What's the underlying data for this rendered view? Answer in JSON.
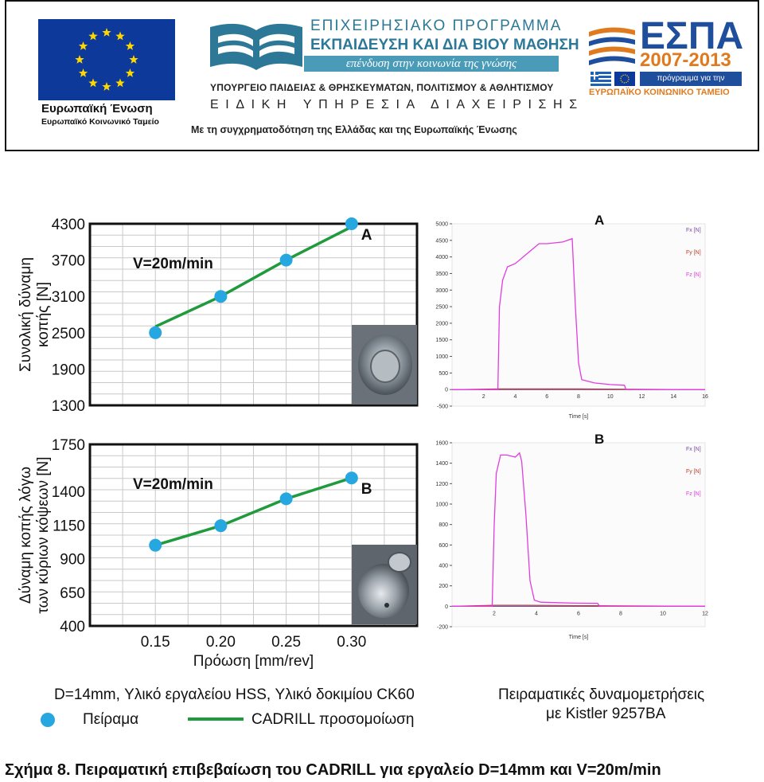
{
  "banner": {
    "eu_text1": "Ευρωπαϊκή Ένωση",
    "eu_text2": "Ευρωπαϊκό Κοινωνικό Ταμείο",
    "program_line1": "ΕΠΙΧΕΙΡΗΣΙΑΚΟ ΠΡΟΓΡΑΜΜΑ",
    "program_line2": "ΕΚΠΑΙΔΕΥΣΗ ΚΑΙ ΔΙΑ ΒΙΟΥ ΜΑΘΗΣΗ",
    "program_line3": "επένδυση στην κοινωνία της γνώσης",
    "program_line4": "ΥΠΟΥΡΓΕΙΟ ΠΑΙΔΕΙΑΣ & ΘΡΗΣΚΕΥΜΑΤΩΝ, ΠΟΛΙΤΙΣΜΟΥ & ΑΘΛΗΤΙΣΜΟΥ",
    "program_line5": "ΕΙΔΙΚΗ ΥΠΗΡΕΣΙΑ ΔΙΑΧΕΙΡΙΣΗΣ",
    "cofunding": "Με τη συγχρηματοδότηση της Ελλάδας και της Ευρωπαϊκής Ένωσης",
    "espa_title": "ΕΣΠΑ",
    "espa_years": "2007-2013",
    "espa_tagline": "πρόγραμμα για την ανάπτυξη",
    "espa_fund": "ΕΥΡΩΠΑΪΚΟ ΚΟΙΝΩΝΙΚΟ ΤΑΜΕΙΟ",
    "eu_color": "#0d3a9a",
    "program_color": "#2d7896",
    "espa_blue": "#1f4e9c",
    "espa_orange": "#e07a1e"
  },
  "chart_data": [
    {
      "type": "line",
      "id": "A",
      "label": "A",
      "annotation": "V=20m/min",
      "ylabel": "Συνολική δύναμη κοπής [N]",
      "ylabel_line1": "Συνολική δύναμη",
      "ylabel_line2": "κοπής [N]",
      "x": [
        0.15,
        0.2,
        0.25,
        0.3
      ],
      "xlim": [
        0.1,
        0.35
      ],
      "ylim": [
        1300,
        4300
      ],
      "yticks": [
        1300,
        1900,
        2500,
        3100,
        3700,
        4300
      ],
      "series": [
        {
          "name": "Πείραμα",
          "style": "markers",
          "values": [
            2500,
            3100,
            3700,
            4300
          ]
        },
        {
          "name": "CADRILL προσομοίωση",
          "style": "line",
          "values": [
            2600,
            3100,
            3700,
            4250
          ]
        }
      ],
      "grid": true
    },
    {
      "type": "line",
      "id": "B",
      "label": "B",
      "annotation": "V=20m/min",
      "ylabel": "Δύναμη κοπής λόγω των κύριων κόψεων [N]",
      "ylabel_line1": "Δύναμη κοπής λόγω",
      "ylabel_line2": "των κύριων κόψεων [N]",
      "xlabel": "Πρόωση [mm/rev]",
      "x": [
        0.15,
        0.2,
        0.25,
        0.3
      ],
      "xticks": [
        "0.15",
        "0.20",
        "0.25",
        "0.30"
      ],
      "xlim": [
        0.1,
        0.35
      ],
      "ylim": [
        400,
        1750
      ],
      "yticks": [
        400,
        650,
        900,
        1150,
        1400,
        1750
      ],
      "series": [
        {
          "name": "Πείραμα",
          "style": "markers",
          "values": [
            1000,
            1145,
            1345,
            1500
          ]
        },
        {
          "name": "CADRILL προσομοίωση",
          "style": "line",
          "values": [
            1000,
            1145,
            1345,
            1500
          ]
        }
      ],
      "grid": true
    },
    {
      "type": "line",
      "id": "A_meas",
      "label": "A",
      "xlabel": "Time [s]",
      "xlim": [
        0,
        16
      ],
      "xticks": [
        2,
        4,
        6,
        8,
        10,
        12,
        14,
        16
      ],
      "ylim": [
        -500,
        5000
      ],
      "yticks": [
        -500,
        0,
        500,
        1000,
        1500,
        2000,
        2500,
        3000,
        3500,
        4000,
        4500,
        5000
      ],
      "legend": [
        "Fx [N]",
        "Fy [N]",
        "Fz [N]"
      ],
      "series": [
        {
          "name": "Fz [N]",
          "x": [
            0,
            2.9,
            3.0,
            3.2,
            3.5,
            4.0,
            5.0,
            5.5,
            6.0,
            7.0,
            7.6,
            7.8,
            8.0,
            8.2,
            9.0,
            10.0,
            10.9,
            11.0,
            16.0
          ],
          "values": [
            0,
            0,
            2500,
            3300,
            3700,
            3800,
            4200,
            4400,
            4400,
            4450,
            4550,
            2500,
            800,
            300,
            200,
            150,
            130,
            0,
            0
          ]
        },
        {
          "name": "Fy [N]",
          "x": [
            0,
            3,
            8,
            16
          ],
          "values": [
            0,
            20,
            20,
            0
          ]
        },
        {
          "name": "Fx [N]",
          "x": [
            0,
            16
          ],
          "values": [
            0,
            0
          ]
        }
      ]
    },
    {
      "type": "line",
      "id": "B_meas",
      "label": "B",
      "xlabel": "Time [s]",
      "xlim": [
        0,
        12
      ],
      "xticks": [
        2,
        4,
        6,
        8,
        10,
        12
      ],
      "ylim": [
        -200,
        1600
      ],
      "yticks": [
        -200,
        0,
        200,
        400,
        600,
        800,
        1000,
        1200,
        1400,
        1600
      ],
      "legend": [
        "Fx [N]",
        "Fy [N]",
        "Fz [N]"
      ],
      "series": [
        {
          "name": "Fz [N]",
          "x": [
            0,
            1.9,
            2.0,
            2.1,
            2.3,
            2.6,
            3.0,
            3.2,
            3.3,
            3.5,
            3.7,
            3.9,
            4.2,
            5.0,
            6.0,
            6.9,
            7.0,
            12.0
          ],
          "values": [
            0,
            0,
            800,
            1300,
            1480,
            1480,
            1460,
            1500,
            1420,
            900,
            250,
            60,
            40,
            35,
            30,
            28,
            0,
            0
          ]
        },
        {
          "name": "Fy [N]",
          "x": [
            0,
            2,
            3.5,
            12
          ],
          "values": [
            0,
            10,
            10,
            0
          ]
        },
        {
          "name": "Fx [N]",
          "x": [
            0,
            12
          ],
          "values": [
            0,
            0
          ]
        }
      ]
    }
  ],
  "series_colors": {
    "experiment": "#27a7e0",
    "simulation": "#1f9a3c",
    "fx": "#7a49a5",
    "fy": "#c0392b",
    "fz": "#e23ce0"
  },
  "photos": {
    "a_tool_photo": "drilled hole photo",
    "b_tool_photo": "tool tip photo"
  },
  "conditions": "D=14mm, Υλικό εργαλείου HSS, Υλικό δοκιμίου CK60",
  "legend": {
    "experiment": "Πείραμα",
    "simulation": "CADRILL προσομοίωση"
  },
  "measurement_note_line1": "Πειραματικές δυναμομετρήσεις",
  "measurement_note_line2": "με Kistler 9257BA",
  "caption": "Σχήμα 8. Πειραματική επιβεβαίωση του CADRILL για εργαλείο D=14mm και V=20m/min"
}
